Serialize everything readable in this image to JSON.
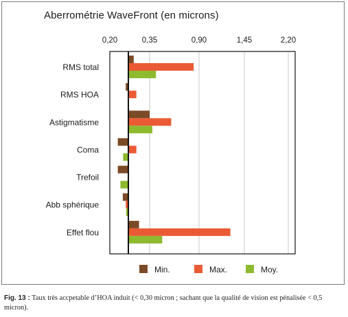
{
  "chart_data": {
    "type": "bar",
    "orientation": "horizontal",
    "title": "Aberrométrie WaveFront (en microns)",
    "x_tick_labels": [
      "0,20",
      "0,35",
      "0,90",
      "1,45",
      "2,20"
    ],
    "x_tick_values": [
      0.2,
      0.35,
      0.9,
      1.45,
      2.2
    ],
    "xlim": [
      0.2,
      2.2
    ],
    "baseline": 0.2,
    "grid": true,
    "legend_position": "bottom",
    "categories": [
      "RMS total",
      "RMS HOA",
      "Astigmatisme",
      "Coma",
      "Trefoil",
      "Abb sphérique",
      "Effet flou"
    ],
    "series": [
      {
        "name": "Min.",
        "color": "#7b4a26",
        "values": [
          0.29,
          0.26,
          0.35,
          0.23,
          0.23,
          0.15,
          0.31
        ]
      },
      {
        "name": "Max.",
        "color": "#ea5a35",
        "values": [
          0.84,
          0.3,
          0.59,
          0.3,
          0.27,
          0.26,
          1.28
        ]
      },
      {
        "name": "Moy.",
        "color": "#8dba2f",
        "values": [
          0.42,
          0.27,
          0.38,
          0.25,
          0.24,
          0.18,
          0.49
        ]
      }
    ]
  },
  "caption": {
    "label": "Fig. 13 :",
    "text": "Taux très accpetable d’HOA induit (< 0,30 micron ; sachant que la qualité de vision est pénalisée < 0,5 micron)."
  }
}
